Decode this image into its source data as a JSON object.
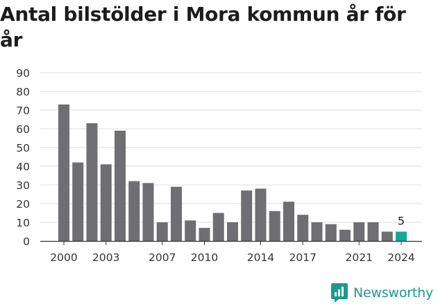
{
  "title": "Antal bilstölder i Mora kommun år för år",
  "brand": {
    "name": "Newsworthy",
    "color": "#1a9a8f"
  },
  "chart_data": {
    "type": "bar",
    "title": "Antal bilstölder i Mora kommun år för år",
    "xlabel": "",
    "ylabel": "",
    "categories": [
      "2000",
      "2001",
      "2002",
      "2003",
      "2004",
      "2005",
      "2006",
      "2007",
      "2008",
      "2009",
      "2010",
      "2011",
      "2012",
      "2013",
      "2014",
      "2015",
      "2016",
      "2017",
      "2018",
      "2019",
      "2020",
      "2021",
      "2022",
      "2023",
      "2024"
    ],
    "x_tick_labels": [
      "2000",
      "2003",
      "2007",
      "2010",
      "2014",
      "2017",
      "2021",
      "2024"
    ],
    "values": [
      73,
      42,
      63,
      41,
      59,
      32,
      31,
      10,
      29,
      11,
      7,
      15,
      10,
      27,
      28,
      16,
      21,
      14,
      10,
      9,
      6,
      10,
      10,
      5,
      5
    ],
    "ylim": [
      0,
      90
    ],
    "yticks": [
      0,
      10,
      20,
      30,
      40,
      50,
      60,
      70,
      80,
      90
    ],
    "grid": true,
    "bar_color": "#6e6e73",
    "highlight_color": "#15a89a",
    "highlight_category": "2024",
    "highlight_label": "5"
  }
}
